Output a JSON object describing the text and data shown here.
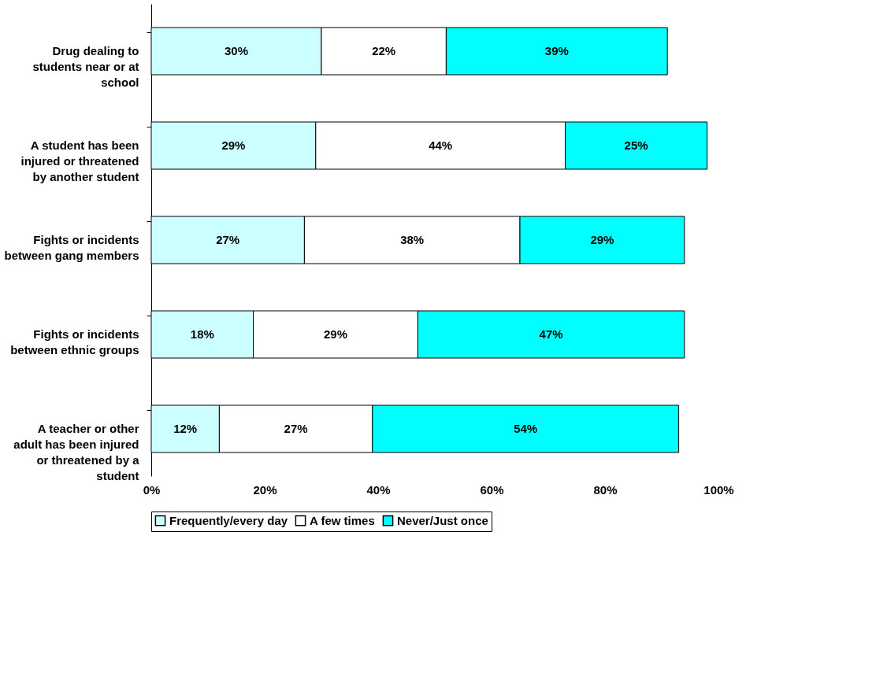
{
  "chart_data": {
    "type": "bar",
    "orientation": "horizontal",
    "stacked": true,
    "categories": [
      "Drug dealing to students near or at school",
      "A student has been injured or threatened by another student",
      "Fights or incidents between gang members",
      "Fights or incidents between ethnic groups",
      "A teacher or other adult has been injured or threatened by a student"
    ],
    "series": [
      {
        "name": "Frequently/every day",
        "color": "#ccffff",
        "values": [
          30,
          29,
          27,
          18,
          12
        ],
        "value_labels": [
          "30%",
          "29%",
          "27%",
          "18%",
          "12%"
        ]
      },
      {
        "name": "A few times",
        "color": "#ffffff",
        "values": [
          22,
          44,
          38,
          29,
          27
        ],
        "value_labels": [
          "22%",
          "44%",
          "38%",
          "29%",
          "27%"
        ]
      },
      {
        "name": "Never/Just once",
        "color": "#00ffff",
        "values": [
          39,
          25,
          29,
          47,
          54
        ],
        "value_labels": [
          "39%",
          "25%",
          "29%",
          "47%",
          "54%"
        ]
      }
    ],
    "xlim": [
      0,
      100
    ],
    "xticks": [
      {
        "value": 0,
        "label": "0%"
      },
      {
        "value": 20,
        "label": "20%"
      },
      {
        "value": 40,
        "label": "40%"
      },
      {
        "value": 60,
        "label": "60%"
      },
      {
        "value": 80,
        "label": "80%"
      },
      {
        "value": 100,
        "label": "100%"
      }
    ],
    "grid": false,
    "legend": "bottom"
  }
}
